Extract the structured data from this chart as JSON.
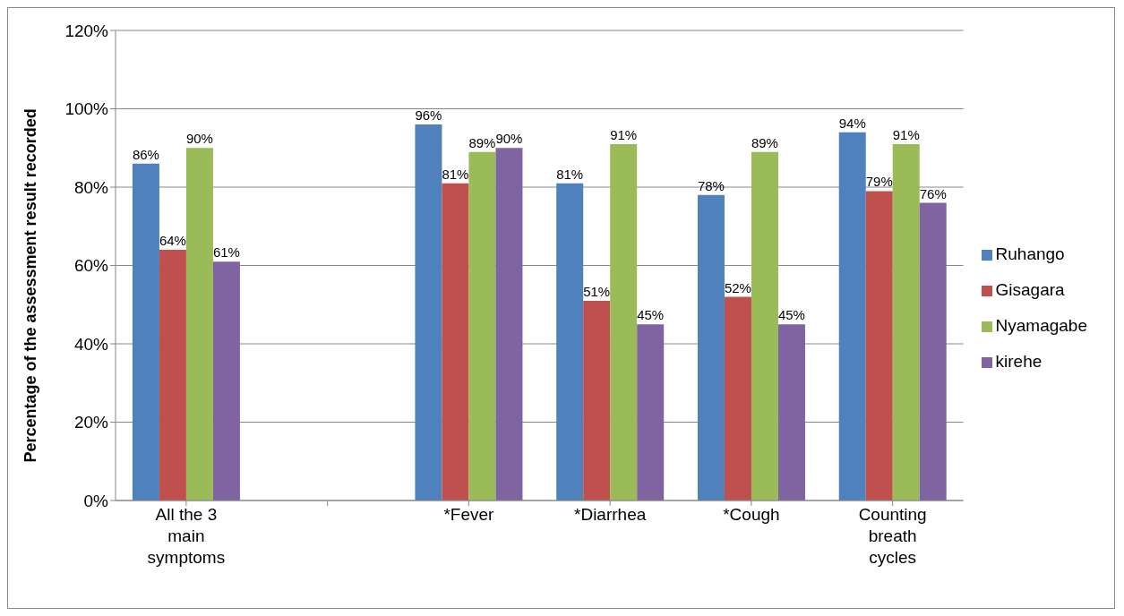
{
  "chart_data": {
    "type": "bar",
    "ylabel": "Percentage of the assessment result recorded",
    "categories": [
      "All the 3 main symptoms",
      null,
      "*Fever",
      "*Diarrhea",
      "*Cough",
      "Counting breath cycles"
    ],
    "series": [
      {
        "name": "Ruhango",
        "color": "#4f81bd",
        "values": [
          86,
          null,
          96,
          81,
          78,
          94
        ],
        "value_labels": [
          "86%",
          null,
          "96%",
          "81%",
          "78%",
          "94%"
        ]
      },
      {
        "name": "Gisagara",
        "color": "#c0504d",
        "values": [
          64,
          null,
          81,
          51,
          52,
          79
        ],
        "value_labels": [
          "64%",
          null,
          "81%",
          "51%",
          "52%",
          "79%"
        ]
      },
      {
        "name": "Nyamagabe",
        "color": "#9bbb59",
        "values": [
          90,
          null,
          89,
          91,
          89,
          91
        ],
        "value_labels": [
          "90%",
          null,
          "89%",
          "91%",
          "89%",
          "91%"
        ]
      },
      {
        "name": "kirehe",
        "color": "#8064a2",
        "values": [
          61,
          null,
          90,
          45,
          45,
          76
        ],
        "value_labels": [
          "61%",
          null,
          "90%",
          "45%",
          "45%",
          "76%"
        ]
      }
    ],
    "ylim": [
      0,
      120
    ],
    "yticks": [
      {
        "value": 0,
        "label": "0%"
      },
      {
        "value": 20,
        "label": "20%"
      },
      {
        "value": 40,
        "label": "40%"
      },
      {
        "value": 60,
        "label": "60%"
      },
      {
        "value": 80,
        "label": "80%"
      },
      {
        "value": 100,
        "label": "100%"
      },
      {
        "value": 120,
        "label": "120%"
      }
    ],
    "grid": "y",
    "legend": "right"
  }
}
